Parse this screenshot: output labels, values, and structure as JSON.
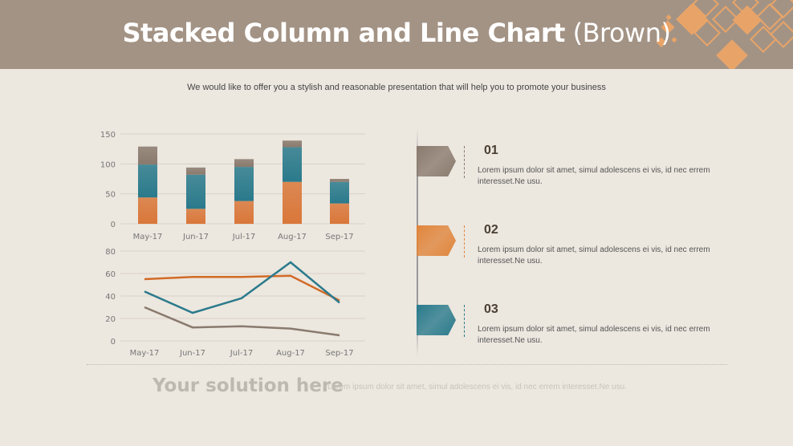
{
  "header": {
    "title_bold": "Stacked Column and Line Chart",
    "title_light": " (Brown)"
  },
  "subtitle": "We would like to offer you a stylish and reasonable presentation that will help you to promote your business",
  "colors": {
    "orange": "#d9773a",
    "teal": "#2a7a8c",
    "brown": "#8a7a6e",
    "header": "#a39385",
    "accent": "#e8a468"
  },
  "chart_data": [
    {
      "type": "bar",
      "stacked": true,
      "categories": [
        "May-17",
        "Jun-17",
        "Jul-17",
        "Aug-17",
        "Sep-17"
      ],
      "series": [
        {
          "color": "#d9773a",
          "values": [
            44,
            25,
            38,
            70,
            34
          ]
        },
        {
          "color": "#2a7a8c",
          "values": [
            55,
            57,
            57,
            58,
            36
          ]
        },
        {
          "color": "#8a7a6e",
          "values": [
            30,
            12,
            13,
            11,
            5
          ]
        }
      ],
      "ylim": [
        0,
        150
      ],
      "yticks": [
        0,
        50,
        100,
        150
      ],
      "grid": true
    },
    {
      "type": "line",
      "categories": [
        "May-17",
        "Jun-17",
        "Jul-17",
        "Aug-17",
        "Sep-17"
      ],
      "series": [
        {
          "color": "#d26a26",
          "values": [
            55,
            57,
            57,
            58,
            36
          ]
        },
        {
          "color": "#2a7a8c",
          "values": [
            44,
            25,
            38,
            70,
            34
          ]
        },
        {
          "color": "#8a7a6e",
          "values": [
            30,
            12,
            13,
            11,
            5
          ]
        }
      ],
      "ylim": [
        0,
        80
      ],
      "yticks": [
        0,
        20,
        40,
        60,
        80
      ],
      "grid": true
    }
  ],
  "items": [
    {
      "num": "01",
      "text": "Lorem ipsum dolor sit amet, simul adolescens ei vis, id nec errem interesset.Ne usu.",
      "color": "#8a7a6e"
    },
    {
      "num": "02",
      "text": "Lorem ipsum dolor sit amet, simul adolescens ei vis, id nec errem interesset.Ne usu.",
      "color": "#e0853c"
    },
    {
      "num": "03",
      "text": "Lorem ipsum dolor sit amet, simul adolescens ei vis, id nec errem interesset.Ne usu.",
      "color": "#2a7a8c"
    }
  ],
  "footer": {
    "title": "Your solution here",
    "text": "Lorem ipsum dolor sit amet, simul adolescens ei vis, id nec errem interesset.Ne usu."
  }
}
